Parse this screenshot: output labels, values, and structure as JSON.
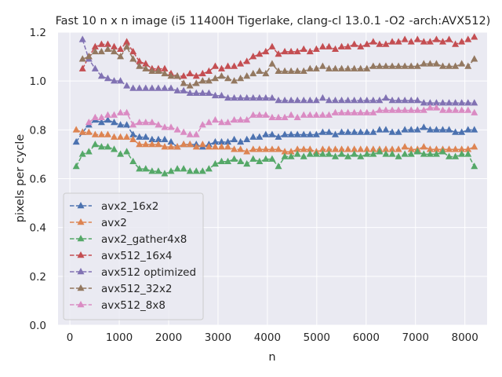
{
  "chart_data": {
    "type": "line",
    "title": "Fast 10 n x n image (i5 11400H Tigerlake, clang-cl 13.0.1 -O2 -arch:AVX512)",
    "xlabel": "n",
    "ylabel": "pixels per cycle",
    "xlim": [
      -240,
      8450
    ],
    "ylim": [
      0,
      1.2
    ],
    "xticks": [
      0,
      1000,
      2000,
      3000,
      4000,
      5000,
      6000,
      7000,
      8000
    ],
    "yticks": [
      0.0,
      0.2,
      0.4,
      0.6,
      0.8,
      1.0,
      1.2
    ],
    "ytick_labels": [
      "0.0",
      "0.2",
      "0.4",
      "0.6",
      "0.8",
      "1.0",
      "1.2"
    ],
    "grid": true,
    "legend_position": "lower-left",
    "x": [
      128,
      256,
      384,
      512,
      640,
      768,
      896,
      1024,
      1152,
      1280,
      1408,
      1536,
      1664,
      1792,
      1920,
      2048,
      2176,
      2304,
      2432,
      2560,
      2688,
      2816,
      2944,
      3072,
      3200,
      3328,
      3456,
      3584,
      3712,
      3840,
      3968,
      4096,
      4224,
      4352,
      4480,
      4608,
      4736,
      4864,
      4992,
      5120,
      5248,
      5376,
      5504,
      5632,
      5760,
      5888,
      6016,
      6144,
      6272,
      6400,
      6528,
      6656,
      6784,
      6912,
      7040,
      7168,
      7296,
      7424,
      7552,
      7680,
      7808,
      7936,
      8064,
      8192
    ],
    "series": [
      {
        "name": "avx2_16x2",
        "color": "#4c72b0",
        "values": [
          0.75,
          0.79,
          0.82,
          0.84,
          0.83,
          0.84,
          0.83,
          0.82,
          0.82,
          0.78,
          0.77,
          0.77,
          0.76,
          0.76,
          0.76,
          0.75,
          0.73,
          0.74,
          0.74,
          0.74,
          0.73,
          0.74,
          0.75,
          0.75,
          0.75,
          0.76,
          0.75,
          0.76,
          0.77,
          0.77,
          0.78,
          0.78,
          0.77,
          0.78,
          0.78,
          0.78,
          0.78,
          0.78,
          0.78,
          0.79,
          0.79,
          0.78,
          0.79,
          0.79,
          0.79,
          0.79,
          0.79,
          0.79,
          0.8,
          0.8,
          0.79,
          0.79,
          0.8,
          0.8,
          0.8,
          0.81,
          0.8,
          0.8,
          0.8,
          0.8,
          0.79,
          0.79,
          0.8,
          0.8
        ]
      },
      {
        "name": "avx2",
        "color": "#dd8452",
        "values": [
          0.8,
          0.79,
          0.79,
          0.78,
          0.78,
          0.78,
          0.77,
          0.77,
          0.77,
          0.76,
          0.74,
          0.74,
          0.74,
          0.74,
          0.73,
          0.73,
          0.73,
          0.74,
          0.74,
          0.73,
          0.74,
          0.73,
          0.73,
          0.73,
          0.73,
          0.72,
          0.72,
          0.71,
          0.72,
          0.72,
          0.72,
          0.72,
          0.72,
          0.71,
          0.71,
          0.72,
          0.72,
          0.72,
          0.71,
          0.72,
          0.72,
          0.72,
          0.72,
          0.72,
          0.72,
          0.72,
          0.72,
          0.72,
          0.72,
          0.72,
          0.72,
          0.72,
          0.73,
          0.72,
          0.72,
          0.73,
          0.72,
          0.72,
          0.72,
          0.72,
          0.72,
          0.72,
          0.72,
          0.73
        ]
      },
      {
        "name": "avx2_gather4x8",
        "color": "#55a868",
        "values": [
          0.65,
          0.7,
          0.71,
          0.74,
          0.73,
          0.73,
          0.72,
          0.7,
          0.71,
          0.67,
          0.64,
          0.64,
          0.63,
          0.63,
          0.62,
          0.63,
          0.64,
          0.64,
          0.63,
          0.63,
          0.63,
          0.64,
          0.66,
          0.67,
          0.67,
          0.68,
          0.67,
          0.66,
          0.68,
          0.67,
          0.68,
          0.68,
          0.65,
          0.69,
          0.69,
          0.7,
          0.69,
          0.7,
          0.7,
          0.7,
          0.7,
          0.69,
          0.7,
          0.69,
          0.7,
          0.69,
          0.7,
          0.7,
          0.71,
          0.7,
          0.7,
          0.69,
          0.7,
          0.7,
          0.71,
          0.7,
          0.7,
          0.7,
          0.71,
          0.69,
          0.69,
          0.7,
          0.7,
          0.65
        ]
      },
      {
        "name": "avx512_16x4",
        "color": "#c44e52",
        "values": [
          null,
          1.05,
          1.1,
          1.14,
          1.15,
          1.15,
          1.14,
          1.13,
          1.16,
          1.12,
          1.08,
          1.07,
          1.05,
          1.05,
          1.05,
          1.03,
          1.02,
          1.02,
          1.03,
          1.02,
          1.03,
          1.04,
          1.06,
          1.05,
          1.06,
          1.06,
          1.07,
          1.08,
          1.1,
          1.11,
          1.12,
          1.14,
          1.11,
          1.12,
          1.12,
          1.12,
          1.13,
          1.12,
          1.13,
          1.14,
          1.14,
          1.13,
          1.14,
          1.14,
          1.15,
          1.14,
          1.15,
          1.16,
          1.15,
          1.15,
          1.16,
          1.16,
          1.17,
          1.16,
          1.17,
          1.16,
          1.16,
          1.17,
          1.16,
          1.17,
          1.15,
          1.16,
          1.17,
          1.18
        ]
      },
      {
        "name": "avx512 optimized",
        "color": "#8172b3",
        "values": [
          null,
          1.17,
          1.09,
          1.05,
          1.02,
          1.01,
          1.0,
          1.0,
          0.98,
          0.97,
          0.97,
          0.97,
          0.97,
          0.97,
          0.97,
          0.97,
          0.96,
          0.96,
          0.95,
          0.95,
          0.95,
          0.95,
          0.94,
          0.94,
          0.93,
          0.93,
          0.93,
          0.93,
          0.93,
          0.93,
          0.93,
          0.93,
          0.92,
          0.92,
          0.92,
          0.92,
          0.92,
          0.92,
          0.92,
          0.93,
          0.92,
          0.92,
          0.92,
          0.92,
          0.92,
          0.92,
          0.92,
          0.92,
          0.92,
          0.93,
          0.92,
          0.92,
          0.92,
          0.92,
          0.92,
          0.91,
          0.91,
          0.91,
          0.91,
          0.91,
          0.91,
          0.91,
          0.91,
          0.91
        ]
      },
      {
        "name": "avx512_32x2",
        "color": "#937860",
        "values": [
          null,
          1.09,
          1.1,
          1.12,
          1.12,
          1.13,
          1.12,
          1.1,
          1.14,
          1.09,
          1.06,
          1.05,
          1.04,
          1.04,
          1.03,
          1.02,
          1.02,
          0.99,
          0.98,
          0.99,
          1.0,
          1.0,
          1.01,
          1.02,
          1.01,
          1.0,
          1.01,
          1.02,
          1.03,
          1.04,
          1.03,
          1.07,
          1.04,
          1.04,
          1.04,
          1.04,
          1.04,
          1.05,
          1.05,
          1.06,
          1.05,
          1.05,
          1.05,
          1.05,
          1.05,
          1.05,
          1.05,
          1.06,
          1.06,
          1.06,
          1.06,
          1.06,
          1.06,
          1.06,
          1.06,
          1.07,
          1.07,
          1.07,
          1.06,
          1.06,
          1.06,
          1.07,
          1.06,
          1.09
        ]
      },
      {
        "name": "avx512_8x8",
        "color": "#da8bc3",
        "values": [
          null,
          null,
          0.83,
          0.85,
          0.85,
          0.86,
          0.86,
          0.87,
          0.87,
          0.82,
          0.83,
          0.83,
          0.83,
          0.82,
          0.81,
          0.81,
          0.8,
          0.79,
          0.78,
          0.78,
          0.82,
          0.83,
          0.84,
          0.83,
          0.83,
          0.84,
          0.84,
          0.84,
          0.86,
          0.86,
          0.86,
          0.85,
          0.85,
          0.85,
          0.86,
          0.85,
          0.86,
          0.86,
          0.86,
          0.86,
          0.86,
          0.87,
          0.87,
          0.87,
          0.87,
          0.87,
          0.87,
          0.87,
          0.88,
          0.88,
          0.88,
          0.88,
          0.88,
          0.88,
          0.88,
          0.88,
          0.89,
          0.89,
          0.88,
          0.88,
          0.88,
          0.88,
          0.88,
          0.87
        ]
      }
    ]
  }
}
